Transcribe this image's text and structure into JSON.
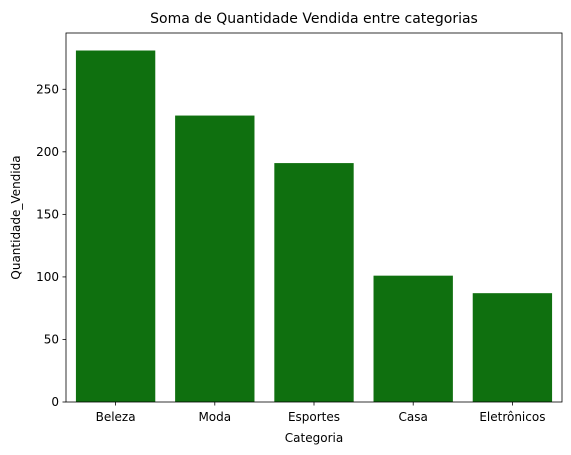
{
  "chart_data": {
    "type": "bar",
    "title": "Soma de Quantidade Vendida entre categorias",
    "xlabel": "Categoria",
    "ylabel": "Quantidade_Vendida",
    "categories": [
      "Beleza",
      "Moda",
      "Esportes",
      "Casa",
      "Eletrônicos"
    ],
    "values": [
      281,
      229,
      191,
      101,
      87
    ],
    "ylim": [
      0,
      295
    ],
    "yticks": [
      0,
      50,
      100,
      150,
      200,
      250
    ],
    "bar_color": "#0f700f",
    "grid": false,
    "legend": "none"
  }
}
